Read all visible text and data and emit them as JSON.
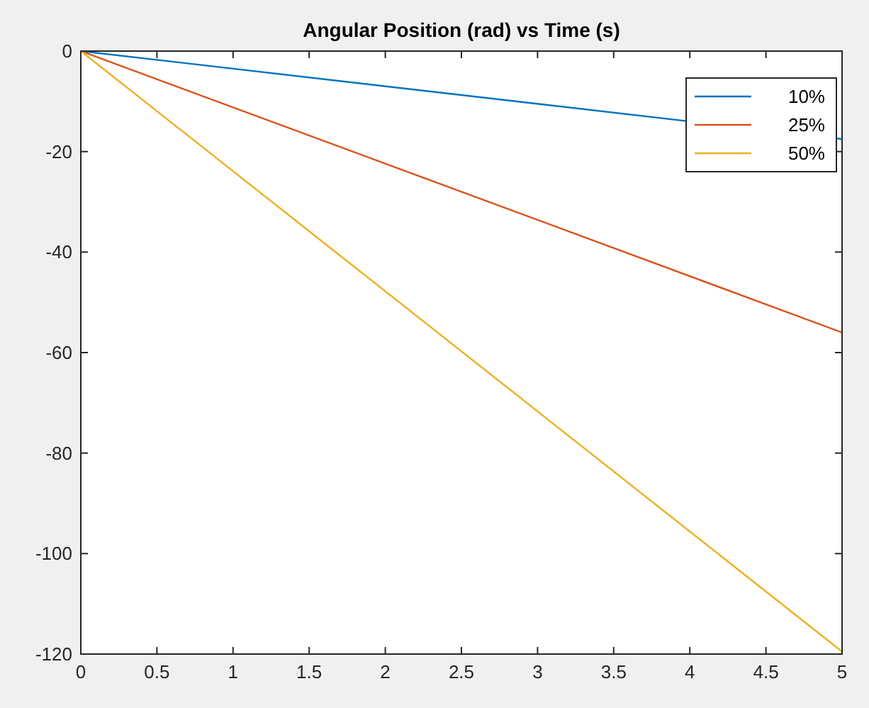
{
  "chart_data": {
    "type": "line",
    "title": "Angular Position (rad) vs Time (s)",
    "x": [
      0,
      5
    ],
    "series": [
      {
        "name": "10%",
        "color": "#0072bd",
        "values": [
          0,
          -17.5
        ]
      },
      {
        "name": "25%",
        "color": "#d95319",
        "values": [
          0,
          -56
        ]
      },
      {
        "name": "50%",
        "color": "#edb120",
        "values": [
          0,
          -119.5
        ]
      }
    ],
    "xlim": [
      0,
      5
    ],
    "xticks": [
      0,
      0.5,
      1,
      1.5,
      2,
      2.5,
      3,
      3.5,
      4,
      4.5,
      5
    ],
    "ylim": [
      -120,
      0
    ],
    "yticks": [
      -120,
      -100,
      -80,
      -60,
      -40,
      -20,
      0
    ],
    "grid": false,
    "legend": "top right",
    "marker": "none",
    "line_style": "solid"
  }
}
